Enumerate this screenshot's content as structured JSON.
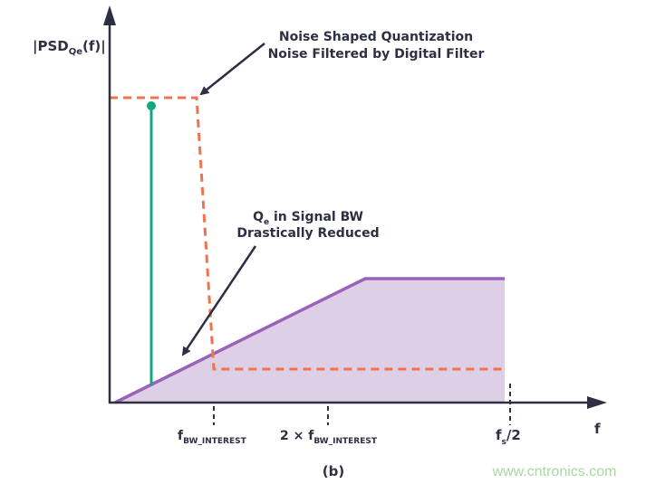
{
  "diagram": {
    "y_axis_label": {
      "main": "|PSD",
      "sub": "Qe",
      "tail": "(f)|"
    },
    "x_axis_label": "f",
    "annotation_top": [
      "Noise Shaped Quantization",
      "Noise Filtered by Digital Filter"
    ],
    "annotation_mid": {
      "line1_main": "Q",
      "line1_sub": "e",
      "line1_tail": " in Signal BW",
      "line2": "Drastically Reduced"
    },
    "ticks": [
      {
        "main": "f",
        "sub": "BW_INTEREST"
      },
      {
        "main": "2 × f",
        "sub": "BW_INTEREST"
      },
      {
        "main": "f",
        "sub": "s",
        "tail": "/2"
      }
    ],
    "caption": "(b)",
    "watermark": "www.cntronics.com",
    "colors": {
      "axis": "#2e2f42",
      "noise_line": "#9a62b8",
      "noise_fill": "#dccfe6",
      "filter": "#f0734f",
      "signal": "#13a87c"
    }
  }
}
